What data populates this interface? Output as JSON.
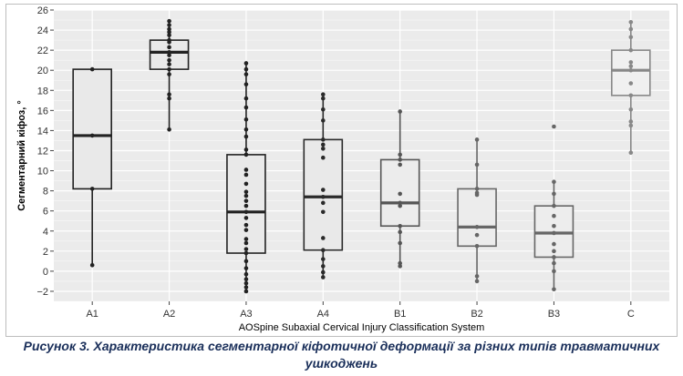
{
  "chart_data": {
    "type": "box",
    "xlabel": "AOSpine Subaxial Cervical Injury Classification System",
    "ylabel": "Сегментарний кіфоз, °",
    "ylim": [
      -3,
      26
    ],
    "yticks": [
      -2,
      0,
      2,
      4,
      6,
      8,
      10,
      12,
      14,
      16,
      18,
      20,
      22,
      24,
      26
    ],
    "grid": true,
    "categories": [
      "A1",
      "A2",
      "A3",
      "A4",
      "B1",
      "B2",
      "B3",
      "C"
    ],
    "boxes": [
      {
        "category": "A1",
        "whisker_low": 0.6,
        "q1": 8.2,
        "median": 13.5,
        "q3": 20.1,
        "whisker_high": 20.1,
        "points": [
          0.6,
          8.2,
          13.5,
          20.1
        ]
      },
      {
        "category": "A2",
        "whisker_low": 14.1,
        "q1": 20.1,
        "median": 21.8,
        "q3": 23.0,
        "whisker_high": 24.9,
        "points": [
          14.1,
          17.2,
          17.6,
          19.6,
          20.1,
          20.6,
          21.0,
          21.5,
          21.8,
          22.3,
          22.8,
          23.0,
          23.5,
          23.8,
          24.1,
          24.5,
          24.9
        ]
      },
      {
        "category": "A3",
        "whisker_low": -2.0,
        "q1": 1.8,
        "median": 5.9,
        "q3": 11.6,
        "whisker_high": 20.7,
        "points": [
          -2.0,
          -1.6,
          -1.2,
          -0.8,
          -0.3,
          0.3,
          1.0,
          1.8,
          2.2,
          2.8,
          3.2,
          4.1,
          4.6,
          5.3,
          5.9,
          6.5,
          7.0,
          7.5,
          7.9,
          8.7,
          9.6,
          10.1,
          11.6,
          12.1,
          13.4,
          14.1,
          15.1,
          16.3,
          17.2,
          18.6,
          19.6,
          20.1,
          20.7
        ]
      },
      {
        "category": "A4",
        "whisker_low": -0.6,
        "q1": 2.1,
        "median": 7.4,
        "q3": 13.1,
        "whisker_high": 17.6,
        "points": [
          -0.6,
          -0.1,
          0.5,
          1.2,
          2.1,
          3.3,
          5.9,
          6.8,
          7.4,
          8.1,
          11.3,
          12.2,
          12.6,
          13.1,
          15.0,
          16.1,
          17.2,
          17.6
        ]
      },
      {
        "category": "B1",
        "whisker_low": 0.5,
        "q1": 4.5,
        "median": 6.8,
        "q3": 11.1,
        "whisker_high": 15.9,
        "points": [
          0.5,
          0.8,
          2.8,
          3.9,
          4.5,
          6.5,
          6.8,
          7.7,
          10.6,
          11.1,
          11.6,
          15.9
        ]
      },
      {
        "category": "B2",
        "whisker_low": -1.0,
        "q1": 2.5,
        "median": 4.4,
        "q3": 8.2,
        "whisker_high": 13.1,
        "points": [
          -1.0,
          -0.5,
          2.5,
          3.6,
          4.4,
          7.6,
          7.8,
          8.2,
          10.6,
          13.1
        ]
      },
      {
        "category": "B3",
        "whisker_low": -1.8,
        "q1": 1.4,
        "median": 3.8,
        "q3": 6.5,
        "whisker_high": 8.9,
        "points": [
          -1.8,
          0.0,
          0.8,
          1.4,
          2.0,
          2.7,
          3.8,
          4.5,
          5.5,
          6.5,
          7.7,
          8.9,
          14.4
        ]
      },
      {
        "category": "C",
        "whisker_low": 11.8,
        "q1": 17.5,
        "median": 20.0,
        "q3": 22.0,
        "whisker_high": 24.8,
        "points": [
          11.8,
          14.5,
          14.9,
          16.1,
          17.5,
          18.7,
          20.0,
          20.4,
          20.8,
          22.0,
          23.3,
          24.1,
          24.8
        ]
      }
    ],
    "colors": {
      "panel": "#ebebeb",
      "grid": "#ffffff",
      "box_fill": [
        "#e9e9e9",
        "#e9e9e9",
        "#e9e9e9",
        "#e9e9e9",
        "#ececec",
        "#ececec",
        "#ededed",
        "#f0f0f0"
      ],
      "box_line": [
        "#222222",
        "#222222",
        "#222222",
        "#2a2a2a",
        "#555555",
        "#666666",
        "#666666",
        "#888888"
      ],
      "point": [
        "#222222",
        "#222222",
        "#222222",
        "#2a2a2a",
        "#555555",
        "#666666",
        "#666666",
        "#888888"
      ]
    }
  },
  "caption": {
    "line1": "Рисунок 3. Характеристика сегментарної кіфотичної деформації за різних типів травматичних",
    "line2": "ушкоджень"
  }
}
